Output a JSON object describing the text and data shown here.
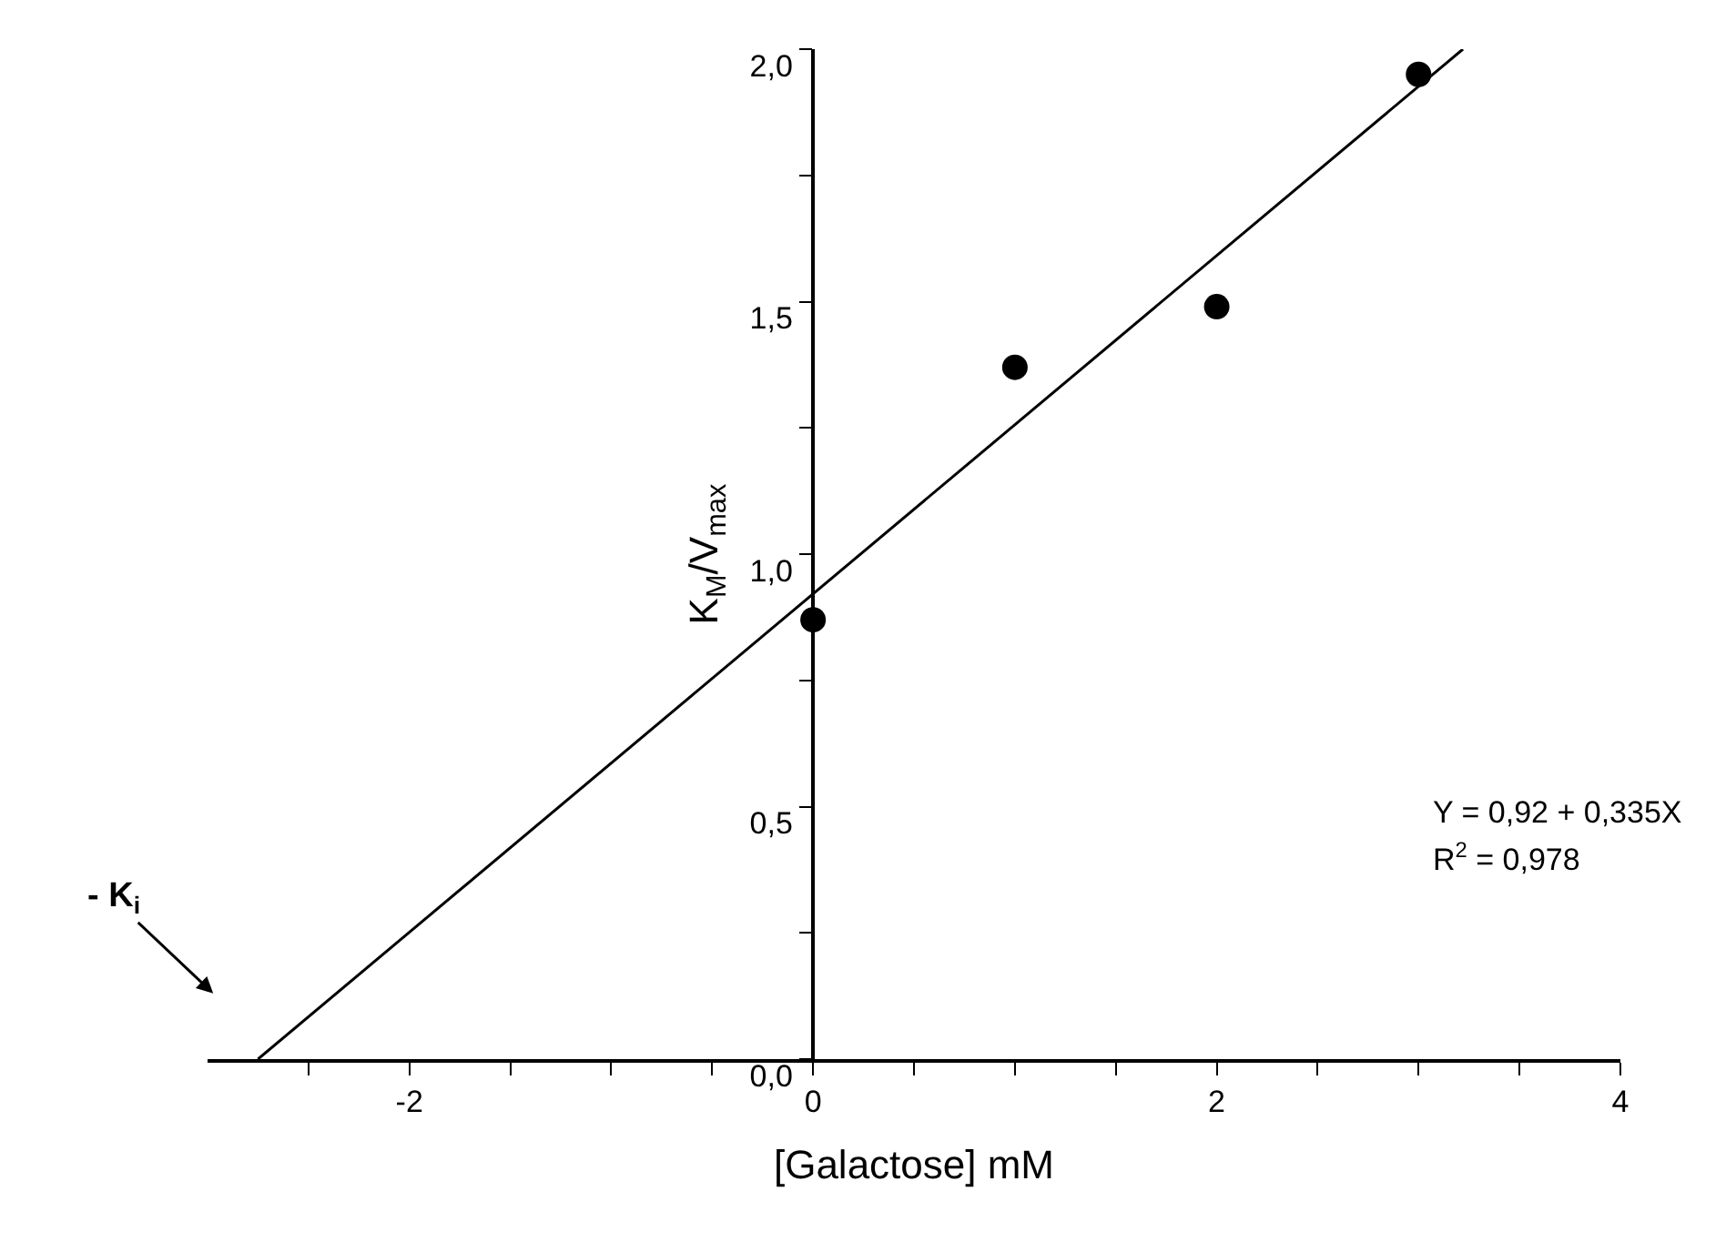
{
  "chart_data": {
    "type": "scatter",
    "xlabel": "[Galactose] mM",
    "ylabel": "K$_{M}$/V$_{max}$",
    "x": [
      0,
      1,
      2,
      3
    ],
    "series": [
      {
        "color": "#000000",
        "marker": "circle",
        "values": [
          0.87,
          1.37,
          1.49,
          1.95
        ]
      },
      {
        "type": "line",
        "color": "#000000",
        "x": [
          -2.75,
          3.22
        ],
        "values": [
          0,
          2.0
        ]
      }
    ],
    "xlim": [
      -3,
      4
    ],
    "ylim": [
      0,
      2
    ],
    "xticks": [
      {
        "value": -2.5,
        "label": null
      },
      -2,
      {
        "value": -1.5,
        "label": null
      },
      {
        "value": -1,
        "label": null
      },
      {
        "value": -0.5,
        "label": null
      },
      0,
      {
        "value": 0.5,
        "label": null
      },
      {
        "value": 1,
        "label": null
      },
      {
        "value": 1.5,
        "label": null
      },
      2,
      {
        "value": 2.5,
        "label": null
      },
      {
        "value": 3,
        "label": null
      },
      {
        "value": 3.5,
        "label": null
      },
      4
    ],
    "yticks": [
      {
        "value": 0,
        "label": "0,0"
      },
      {
        "value": 0.25,
        "label": null
      },
      {
        "value": 0.5,
        "label": "0,5"
      },
      {
        "value": 0.75,
        "label": null
      },
      {
        "value": 1,
        "label": "1,0"
      },
      {
        "value": 1.25,
        "label": null
      },
      {
        "value": 1.5,
        "label": "1,5"
      },
      {
        "value": 1.75,
        "label": null
      },
      {
        "value": 2,
        "label": "2,0"
      }
    ],
    "annotations": [
      "Y = 0,92 + 0,335X",
      "R$^{2}$ = 0,978",
      "- K$_{i}$"
    ],
    "grid": false
  }
}
